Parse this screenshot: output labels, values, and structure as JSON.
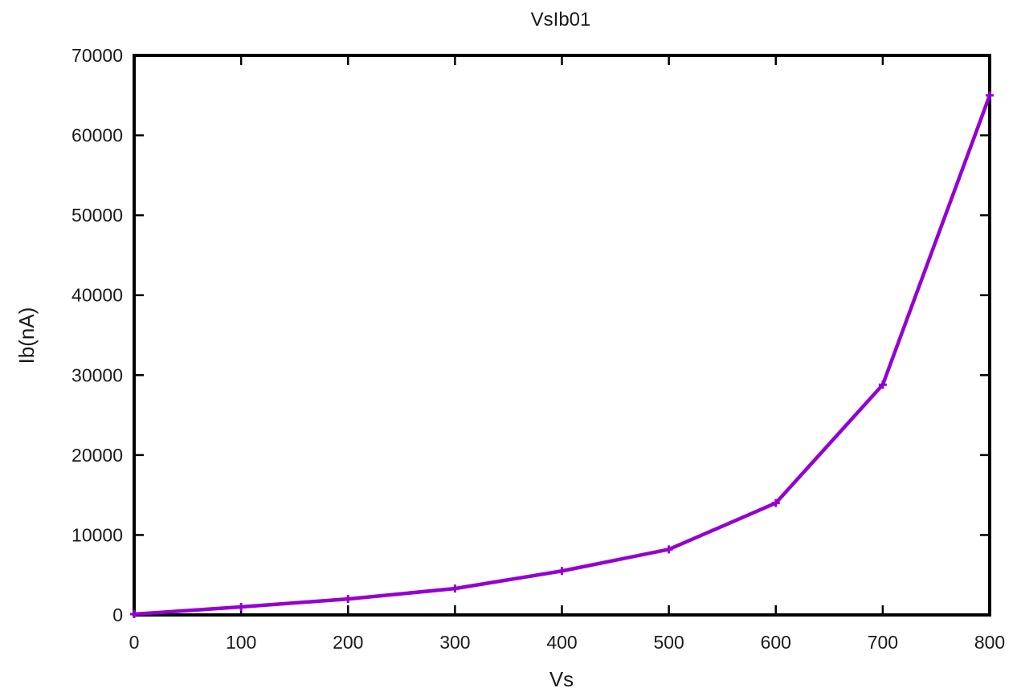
{
  "chart_data": {
    "type": "line",
    "title": "VsIb01",
    "xlabel": "Vs",
    "ylabel": "Ib(nA)",
    "xlim": [
      0,
      800
    ],
    "ylim": [
      0,
      70000
    ],
    "xticks": [
      0,
      100,
      200,
      300,
      400,
      500,
      600,
      700,
      800
    ],
    "yticks": [
      0,
      10000,
      20000,
      30000,
      40000,
      50000,
      60000,
      70000
    ],
    "grid": false,
    "legend": "none",
    "series": [
      {
        "color": "#9400d3",
        "x": [
          0,
          100,
          200,
          300,
          400,
          500,
          600,
          700,
          800
        ],
        "y": [
          100,
          1000,
          2000,
          3300,
          5500,
          8200,
          14000,
          28800,
          65000
        ]
      }
    ]
  }
}
